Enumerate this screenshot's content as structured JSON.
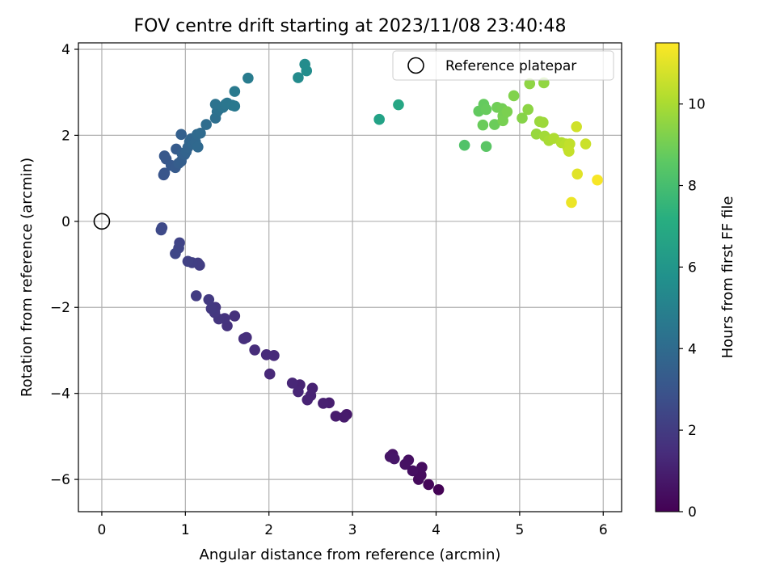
{
  "chart_data": {
    "type": "scatter",
    "title": "FOV centre drift starting at 2023/11/08 23:40:48",
    "xlabel": "Angular distance from reference (arcmin)",
    "ylabel": "Rotation from reference (arcmin)",
    "xlim": [
      -0.28,
      6.22
    ],
    "ylim": [
      -6.75,
      4.15
    ],
    "xticks": [
      0,
      1,
      2,
      3,
      4,
      5,
      6
    ],
    "yticks": [
      -6,
      -4,
      -2,
      0,
      2,
      4
    ],
    "grid": true,
    "legend_position": "top-right",
    "reference": {
      "label": "Reference platepar",
      "x": 0,
      "y": 0,
      "marker": "open-circle"
    },
    "colorbar": {
      "label": "Hours from first FF file",
      "colormap": "viridis",
      "range": [
        0,
        11.5
      ],
      "ticks": [
        0,
        2,
        4,
        6,
        8,
        10
      ]
    },
    "points": [
      {
        "x": 4.03,
        "y": -6.24,
        "c": 0.05
      },
      {
        "x": 3.91,
        "y": -6.12,
        "c": 0.2
      },
      {
        "x": 3.79,
        "y": -6.0,
        "c": 0.3
      },
      {
        "x": 3.82,
        "y": -5.9,
        "c": 0.35
      },
      {
        "x": 3.83,
        "y": -5.72,
        "c": 0.4
      },
      {
        "x": 3.72,
        "y": -5.8,
        "c": 0.45
      },
      {
        "x": 3.67,
        "y": -5.55,
        "c": 0.5
      },
      {
        "x": 3.63,
        "y": -5.65,
        "c": 0.55
      },
      {
        "x": 3.48,
        "y": -5.42,
        "c": 0.6
      },
      {
        "x": 3.45,
        "y": -5.47,
        "c": 0.65
      },
      {
        "x": 3.5,
        "y": -5.52,
        "c": 0.7
      },
      {
        "x": 2.93,
        "y": -4.49,
        "c": 0.8
      },
      {
        "x": 2.9,
        "y": -4.55,
        "c": 0.85
      },
      {
        "x": 2.8,
        "y": -4.53,
        "c": 0.9
      },
      {
        "x": 2.72,
        "y": -4.22,
        "c": 0.95
      },
      {
        "x": 2.65,
        "y": -4.23,
        "c": 1.0
      },
      {
        "x": 2.52,
        "y": -3.88,
        "c": 1.05
      },
      {
        "x": 2.5,
        "y": -4.05,
        "c": 1.1
      },
      {
        "x": 2.46,
        "y": -4.15,
        "c": 1.12
      },
      {
        "x": 2.37,
        "y": -3.8,
        "c": 1.15
      },
      {
        "x": 2.35,
        "y": -3.96,
        "c": 1.2
      },
      {
        "x": 2.28,
        "y": -3.76,
        "c": 1.25
      },
      {
        "x": 2.01,
        "y": -3.55,
        "c": 1.3
      },
      {
        "x": 2.06,
        "y": -3.12,
        "c": 1.35
      },
      {
        "x": 1.97,
        "y": -3.1,
        "c": 1.4
      },
      {
        "x": 1.83,
        "y": -2.99,
        "c": 1.45
      },
      {
        "x": 1.73,
        "y": -2.7,
        "c": 1.5
      },
      {
        "x": 1.7,
        "y": -2.73,
        "c": 1.55
      },
      {
        "x": 1.59,
        "y": -2.2,
        "c": 1.6
      },
      {
        "x": 1.5,
        "y": -2.43,
        "c": 1.65
      },
      {
        "x": 1.47,
        "y": -2.26,
        "c": 1.7
      },
      {
        "x": 1.4,
        "y": -2.27,
        "c": 1.75
      },
      {
        "x": 1.36,
        "y": -2.0,
        "c": 1.8
      },
      {
        "x": 1.35,
        "y": -2.12,
        "c": 1.85
      },
      {
        "x": 1.31,
        "y": -2.03,
        "c": 1.9
      },
      {
        "x": 1.28,
        "y": -1.82,
        "c": 1.95
      },
      {
        "x": 1.13,
        "y": -1.73,
        "c": 2.0
      },
      {
        "x": 1.17,
        "y": -1.02,
        "c": 2.05
      },
      {
        "x": 1.15,
        "y": -0.97,
        "c": 2.1
      },
      {
        "x": 1.08,
        "y": -0.96,
        "c": 2.15
      },
      {
        "x": 1.03,
        "y": -0.93,
        "c": 2.2
      },
      {
        "x": 0.93,
        "y": -0.5,
        "c": 2.3
      },
      {
        "x": 0.92,
        "y": -0.62,
        "c": 2.35
      },
      {
        "x": 0.88,
        "y": -0.75,
        "c": 2.4
      },
      {
        "x": 0.72,
        "y": -0.15,
        "c": 2.5
      },
      {
        "x": 0.71,
        "y": -0.2,
        "c": 2.55
      },
      {
        "x": 0.74,
        "y": 1.08,
        "c": 3.0
      },
      {
        "x": 0.75,
        "y": 1.12,
        "c": 3.05
      },
      {
        "x": 0.77,
        "y": 1.45,
        "c": 3.1
      },
      {
        "x": 0.75,
        "y": 1.52,
        "c": 3.15
      },
      {
        "x": 0.83,
        "y": 1.3,
        "c": 3.2
      },
      {
        "x": 0.88,
        "y": 1.25,
        "c": 3.25
      },
      {
        "x": 0.89,
        "y": 1.68,
        "c": 3.3
      },
      {
        "x": 0.92,
        "y": 1.35,
        "c": 3.35
      },
      {
        "x": 0.95,
        "y": 1.4,
        "c": 3.4
      },
      {
        "x": 0.96,
        "y": 1.58,
        "c": 3.45
      },
      {
        "x": 0.95,
        "y": 2.02,
        "c": 3.5
      },
      {
        "x": 0.99,
        "y": 1.55,
        "c": 3.55
      },
      {
        "x": 1.01,
        "y": 1.62,
        "c": 3.6
      },
      {
        "x": 1.03,
        "y": 1.72,
        "c": 3.65
      },
      {
        "x": 1.05,
        "y": 1.85,
        "c": 3.7
      },
      {
        "x": 1.07,
        "y": 1.92,
        "c": 3.75
      },
      {
        "x": 1.09,
        "y": 1.8,
        "c": 3.8
      },
      {
        "x": 1.12,
        "y": 1.85,
        "c": 3.85
      },
      {
        "x": 1.15,
        "y": 1.73,
        "c": 3.9
      },
      {
        "x": 1.14,
        "y": 2.02,
        "c": 3.95
      },
      {
        "x": 1.18,
        "y": 2.05,
        "c": 4.0
      },
      {
        "x": 1.25,
        "y": 2.25,
        "c": 4.1
      },
      {
        "x": 1.36,
        "y": 2.4,
        "c": 4.2
      },
      {
        "x": 1.38,
        "y": 2.55,
        "c": 4.25
      },
      {
        "x": 1.4,
        "y": 2.6,
        "c": 4.3
      },
      {
        "x": 1.36,
        "y": 2.72,
        "c": 4.35
      },
      {
        "x": 1.45,
        "y": 2.65,
        "c": 4.4
      },
      {
        "x": 1.48,
        "y": 2.72,
        "c": 4.45
      },
      {
        "x": 1.5,
        "y": 2.75,
        "c": 4.5
      },
      {
        "x": 1.56,
        "y": 2.7,
        "c": 4.55
      },
      {
        "x": 1.59,
        "y": 2.68,
        "c": 4.6
      },
      {
        "x": 1.59,
        "y": 3.02,
        "c": 4.7
      },
      {
        "x": 1.75,
        "y": 3.33,
        "c": 4.8
      },
      {
        "x": 2.35,
        "y": 3.34,
        "c": 5.5
      },
      {
        "x": 2.43,
        "y": 3.65,
        "c": 5.55
      },
      {
        "x": 2.45,
        "y": 3.5,
        "c": 5.6
      },
      {
        "x": 3.32,
        "y": 2.37,
        "c": 6.6
      },
      {
        "x": 3.55,
        "y": 2.71,
        "c": 6.8
      },
      {
        "x": 4.34,
        "y": 1.77,
        "c": 8.3
      },
      {
        "x": 4.6,
        "y": 1.74,
        "c": 8.5
      },
      {
        "x": 4.51,
        "y": 2.56,
        "c": 8.7
      },
      {
        "x": 4.57,
        "y": 2.72,
        "c": 8.75
      },
      {
        "x": 4.6,
        "y": 2.6,
        "c": 8.8
      },
      {
        "x": 4.56,
        "y": 2.24,
        "c": 8.85
      },
      {
        "x": 4.7,
        "y": 2.25,
        "c": 8.9
      },
      {
        "x": 4.73,
        "y": 2.65,
        "c": 9.0
      },
      {
        "x": 4.79,
        "y": 2.62,
        "c": 9.05
      },
      {
        "x": 4.8,
        "y": 2.45,
        "c": 9.1
      },
      {
        "x": 4.8,
        "y": 2.34,
        "c": 9.15
      },
      {
        "x": 4.85,
        "y": 2.55,
        "c": 9.2
      },
      {
        "x": 4.93,
        "y": 2.92,
        "c": 9.3
      },
      {
        "x": 5.03,
        "y": 2.4,
        "c": 9.4
      },
      {
        "x": 5.1,
        "y": 2.6,
        "c": 9.5
      },
      {
        "x": 5.12,
        "y": 3.2,
        "c": 9.55
      },
      {
        "x": 5.29,
        "y": 3.22,
        "c": 9.6
      },
      {
        "x": 5.2,
        "y": 2.03,
        "c": 9.7
      },
      {
        "x": 5.24,
        "y": 2.32,
        "c": 9.75
      },
      {
        "x": 5.28,
        "y": 2.3,
        "c": 9.8
      },
      {
        "x": 5.3,
        "y": 1.98,
        "c": 9.9
      },
      {
        "x": 5.35,
        "y": 1.88,
        "c": 10.0
      },
      {
        "x": 5.41,
        "y": 1.93,
        "c": 10.1
      },
      {
        "x": 5.5,
        "y": 1.83,
        "c": 10.2
      },
      {
        "x": 5.55,
        "y": 1.8,
        "c": 10.3
      },
      {
        "x": 5.58,
        "y": 1.69,
        "c": 10.4
      },
      {
        "x": 5.6,
        "y": 1.8,
        "c": 10.45
      },
      {
        "x": 5.59,
        "y": 1.63,
        "c": 10.5
      },
      {
        "x": 5.79,
        "y": 1.8,
        "c": 10.6
      },
      {
        "x": 5.68,
        "y": 2.2,
        "c": 10.7
      },
      {
        "x": 5.69,
        "y": 1.1,
        "c": 11.0
      },
      {
        "x": 5.62,
        "y": 0.44,
        "c": 11.2
      },
      {
        "x": 5.93,
        "y": 0.96,
        "c": 11.4
      }
    ]
  }
}
